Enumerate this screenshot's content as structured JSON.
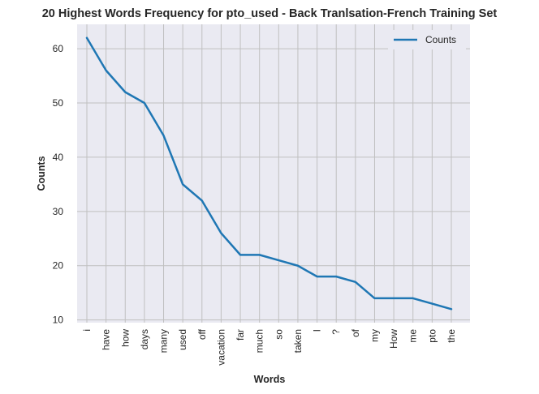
{
  "chart_data": {
    "type": "line",
    "title": "20 Highest Words Frequency for pto_used - Back Tranlsation-French Training Set",
    "xlabel": "Words",
    "ylabel": "Counts",
    "categories": [
      "i",
      "have",
      "how",
      "days",
      "many",
      "used",
      "off",
      "vacation",
      "far",
      "much",
      "so",
      "taken",
      "I",
      "?",
      "of",
      "my",
      "How",
      "me",
      "pto",
      "the"
    ],
    "series": [
      {
        "name": "Counts",
        "values": [
          62,
          56,
          52,
          50,
          44,
          35,
          32,
          26,
          22,
          22,
          21,
          20,
          18,
          18,
          17,
          14,
          14,
          14,
          13,
          12
        ]
      }
    ],
    "ylim": [
      9.5,
      64.5
    ],
    "yticks": [
      10,
      20,
      30,
      40,
      50,
      60
    ],
    "grid": true,
    "legend": "top-right",
    "colors": {
      "line": "#1f77b4",
      "plot_bg": "#eaeaf2",
      "grid": "#c0c0c0"
    }
  }
}
